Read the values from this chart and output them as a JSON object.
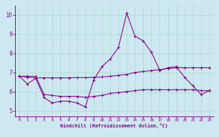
{
  "xlabel": "Windchill (Refroidissement éolien,°C)",
  "xlim": [
    -0.5,
    23.5
  ],
  "ylim": [
    4.7,
    10.5
  ],
  "yticks": [
    5,
    6,
    7,
    8,
    9,
    10
  ],
  "xticks": [
    0,
    1,
    2,
    3,
    4,
    5,
    6,
    7,
    8,
    9,
    10,
    11,
    12,
    13,
    14,
    15,
    16,
    17,
    18,
    19,
    20,
    21,
    22,
    23
  ],
  "bg_color": "#cde8f0",
  "grid_color": "#a8d8cc",
  "line_color": "#880088",
  "line1_y": [
    6.8,
    6.4,
    6.7,
    5.7,
    5.4,
    5.5,
    5.5,
    5.4,
    5.2,
    6.6,
    7.3,
    7.7,
    8.3,
    10.1,
    8.9,
    8.65,
    8.05,
    7.1,
    7.25,
    7.3,
    6.75,
    6.3,
    5.85,
    6.05
  ],
  "line2_y": [
    6.8,
    6.75,
    6.72,
    6.72,
    6.72,
    6.72,
    6.72,
    6.73,
    6.73,
    6.74,
    6.76,
    6.8,
    6.85,
    6.9,
    7.0,
    7.05,
    7.1,
    7.15,
    7.2,
    7.25,
    7.25,
    7.25,
    7.25,
    7.25
  ],
  "line3_y": [
    6.8,
    6.8,
    6.8,
    5.85,
    5.8,
    5.75,
    5.75,
    5.75,
    5.7,
    5.75,
    5.8,
    5.9,
    5.95,
    6.0,
    6.05,
    6.1,
    6.1,
    6.1,
    6.1,
    6.1,
    6.1,
    6.1,
    6.05,
    6.05
  ]
}
